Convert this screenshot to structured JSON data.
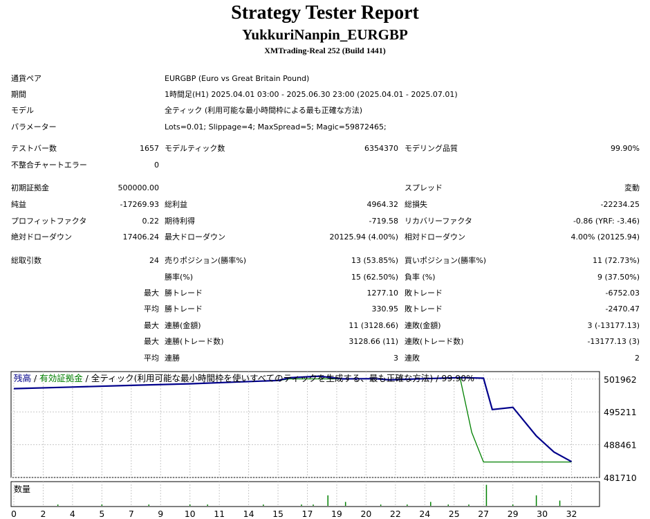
{
  "header": {
    "title": "Strategy Tester Report",
    "subtitle": "YukkuriNanpin_EURGBP",
    "broker": "XMTrading-Real 252 (Build 1441)"
  },
  "info": {
    "symbol_label": "通貨ペア",
    "symbol": "EURGBP (Euro vs Great Britain Pound)",
    "period_label": "期間",
    "period": "1時間足(H1) 2025.04.01 03:00 - 2025.06.30 23:00 (2025.04.01 - 2025.07.01)",
    "model_label": "モデル",
    "model": "全ティック (利用可能な最小時間枠による最も正確な方法)",
    "params_label": "パラメーター",
    "params": "Lots=0.01; Slippage=4; MaxSpread=5; Magic=59872465;"
  },
  "stats": {
    "bars_label": "テストバー数",
    "bars": "1657",
    "ticks_label": "モデルティック数",
    "ticks": "6354370",
    "quality_label": "モデリング品質",
    "quality": "99.90%",
    "errors_label": "不整合チャートエラー",
    "errors": "0",
    "deposit_label": "初期証拠金",
    "deposit": "500000.00",
    "spread_label": "スプレッド",
    "spread": "変動",
    "net_label": "純益",
    "net": "-17269.93",
    "gross_profit_label": "総利益",
    "gross_profit": "4964.32",
    "gross_loss_label": "総損失",
    "gross_loss": "-22234.25",
    "pf_label": "プロフィットファクタ",
    "pf": "0.22",
    "expected_label": "期待利得",
    "expected": "-719.58",
    "recovery_label": "リカバリーファクタ",
    "recovery": "-0.86 (YRF: -3.46)",
    "abs_dd_label": "絶対ドローダウン",
    "abs_dd": "17406.24",
    "max_dd_label": "最大ドローダウン",
    "max_dd": "20125.94 (4.00%)",
    "rel_dd_label": "相対ドローダウン",
    "rel_dd": "4.00% (20125.94)",
    "total_trades_label": "総取引数",
    "total_trades": "24",
    "short_label": "売りポジション(勝率%)",
    "short": "13 (53.85%)",
    "long_label": "買いポジション(勝率%)",
    "long": "11 (72.73%)",
    "win_rate_label": "勝率(%)",
    "win_rate": "15 (62.50%)",
    "loss_rate_label": "負率 (%)",
    "loss_rate": "9 (37.50%)",
    "max_word": "最大",
    "avg_word": "平均",
    "win_trade_label": "勝トレード",
    "loss_trade_label": "敗トレード",
    "largest_win": "1277.10",
    "largest_loss": "-6752.03",
    "average_win": "330.95",
    "average_loss": "-2470.47",
    "consec_win_money_label": "連勝(金額)",
    "consec_win_money": "11 (3128.66)",
    "consec_loss_money_label": "連敗(金額)",
    "consec_loss_money": "3 (-13177.13)",
    "consec_win_trades_label": "連勝(トレード数)",
    "consec_win_trades": "3128.66 (11)",
    "consec_loss_trades_label": "連敗(トレード数)",
    "consec_loss_trades": "-13177.13 (3)",
    "consec_win_label": "連勝",
    "consec_win": "3",
    "consec_loss_label": "連敗",
    "consec_loss": "2"
  },
  "chart_data": {
    "type": "line",
    "legend": {
      "balance": "残高",
      "sep": " / ",
      "equity": "有効証拠金",
      "rest": " / 全ティック(利用可能な最小時間枠を使いすべてのティックを生成する、最も正確な方法) / 99.90%"
    },
    "volume_label": "数量",
    "colors": {
      "balance": "#00008b",
      "equity": "#008000",
      "grid": "#c8c8c8",
      "volume": "#008000"
    },
    "ylim": [
      481710,
      503500
    ],
    "y_ticks": [
      "501962",
      "495211",
      "488461",
      "481710"
    ],
    "x_ticks": [
      "0",
      "2",
      "4",
      "5",
      "7",
      "9",
      "10",
      "11",
      "14",
      "15",
      "17",
      "19",
      "20",
      "22",
      "24",
      "25",
      "27",
      "29",
      "30",
      "32"
    ],
    "xlim": [
      0,
      19
    ],
    "balance": [
      [
        0,
        500000
      ],
      [
        2,
        500330
      ],
      [
        4,
        500660
      ],
      [
        6,
        501000
      ],
      [
        7.5,
        501340
      ],
      [
        9,
        501680
      ],
      [
        9.4,
        502230
      ],
      [
        10.4,
        502560
      ],
      [
        11.2,
        502000
      ],
      [
        12.3,
        502050
      ],
      [
        12.8,
        501800
      ],
      [
        14,
        502050
      ],
      [
        15.2,
        502260
      ],
      [
        16,
        502150
      ],
      [
        16.3,
        495700
      ],
      [
        17,
        496150
      ],
      [
        17.8,
        490260
      ],
      [
        18.4,
        486950
      ],
      [
        19,
        484960
      ]
    ],
    "equity": [
      [
        0,
        500000
      ],
      [
        2,
        500330
      ],
      [
        4,
        500660
      ],
      [
        6,
        501000
      ],
      [
        7.5,
        501340
      ],
      [
        9,
        501680
      ],
      [
        9.4,
        502000
      ],
      [
        10.4,
        502000
      ],
      [
        11.2,
        502000
      ],
      [
        12.3,
        502000
      ],
      [
        12.8,
        501800
      ],
      [
        14,
        502050
      ],
      [
        15.2,
        502260
      ],
      [
        15.6,
        491000
      ],
      [
        16,
        484900
      ],
      [
        19,
        484900
      ]
    ],
    "volume_bars": [
      [
        1.5,
        1
      ],
      [
        3,
        1
      ],
      [
        4.6,
        1
      ],
      [
        6,
        1
      ],
      [
        6.6,
        1
      ],
      [
        8.5,
        1
      ],
      [
        9.8,
        1
      ],
      [
        10.2,
        1
      ],
      [
        10.7,
        8
      ],
      [
        11.3,
        3
      ],
      [
        12.5,
        1
      ],
      [
        13.4,
        1
      ],
      [
        14.2,
        3
      ],
      [
        14.8,
        1
      ],
      [
        15.5,
        1
      ],
      [
        16.1,
        16
      ],
      [
        17,
        1
      ],
      [
        17.8,
        8
      ],
      [
        18.6,
        4
      ]
    ]
  }
}
